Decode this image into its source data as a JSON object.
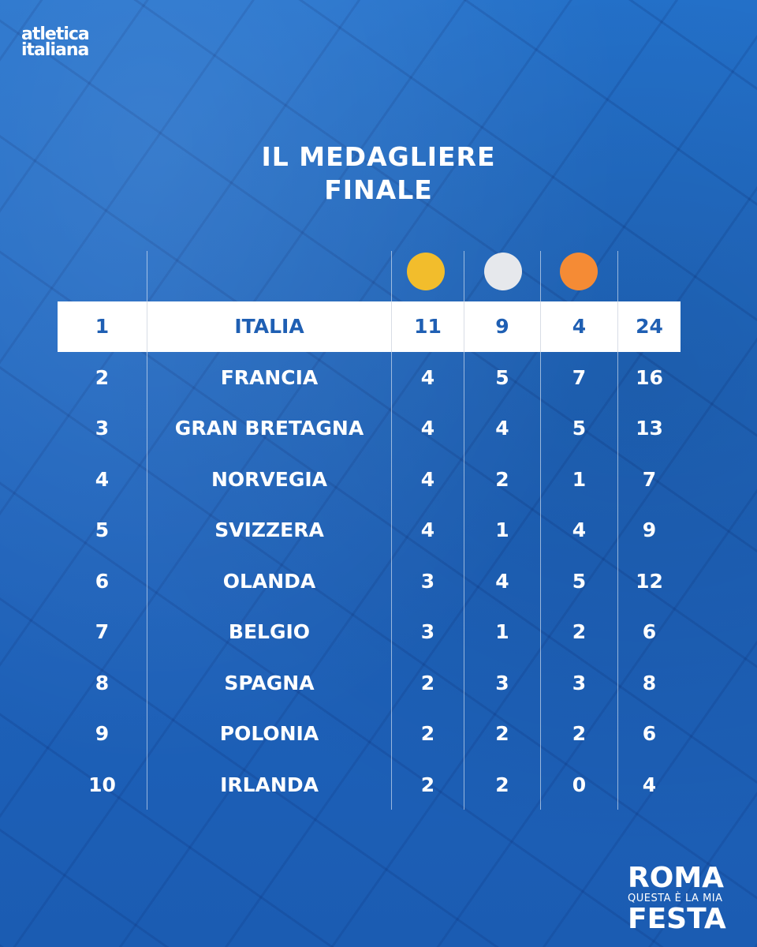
{
  "logo": {
    "line1": "atletica",
    "line2": "italiana"
  },
  "title": {
    "line1": "IL MEDAGLIERE",
    "line2": "FINALE"
  },
  "medal_colors": {
    "gold": "#f2bd2c",
    "silver": "#e6e8ec",
    "bronze": "#f58b35"
  },
  "rows": [
    {
      "rank": "1",
      "nation": "ITALIA",
      "gold": "11",
      "silver": "9",
      "bronze": "4",
      "total": "24"
    },
    {
      "rank": "2",
      "nation": "FRANCIA",
      "gold": "4",
      "silver": "5",
      "bronze": "7",
      "total": "16"
    },
    {
      "rank": "3",
      "nation": "GRAN BRETAGNA",
      "gold": "4",
      "silver": "4",
      "bronze": "5",
      "total": "13"
    },
    {
      "rank": "4",
      "nation": "NORVEGIA",
      "gold": "4",
      "silver": "2",
      "bronze": "1",
      "total": "7"
    },
    {
      "rank": "5",
      "nation": "SVIZZERA",
      "gold": "4",
      "silver": "1",
      "bronze": "4",
      "total": "9"
    },
    {
      "rank": "6",
      "nation": "OLANDA",
      "gold": "3",
      "silver": "4",
      "bronze": "5",
      "total": "12"
    },
    {
      "rank": "7",
      "nation": "BELGIO",
      "gold": "3",
      "silver": "1",
      "bronze": "2",
      "total": "6"
    },
    {
      "rank": "8",
      "nation": "SPAGNA",
      "gold": "2",
      "silver": "3",
      "bronze": "3",
      "total": "8"
    },
    {
      "rank": "9",
      "nation": "POLONIA",
      "gold": "2",
      "silver": "2",
      "bronze": "2",
      "total": "6"
    },
    {
      "rank": "10",
      "nation": "IRLANDA",
      "gold": "2",
      "silver": "2",
      "bronze": "0",
      "total": "4"
    }
  ],
  "brand": {
    "line1": "ROMA",
    "line2": "QUESTA È LA MIA",
    "line3": "FESTA"
  }
}
